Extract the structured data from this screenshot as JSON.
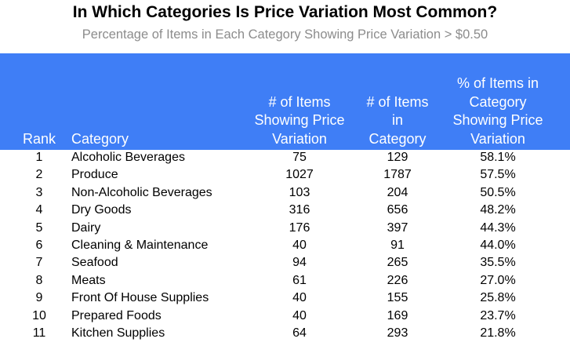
{
  "header": {
    "title": "In Which Categories Is Price Variation Most Common?",
    "subtitle": "Percentage of Items in Each Category Showing Price Variation > $0.50"
  },
  "table": {
    "columns": [
      [
        "Rank"
      ],
      [
        "Category"
      ],
      [
        "# of Items",
        "Showing Price",
        "Variation"
      ],
      [
        "# of Items",
        "in",
        "Category"
      ],
      [
        "% of Items in",
        "Category",
        "Showing Price",
        "Variation"
      ]
    ],
    "rows": [
      [
        "1",
        "Alcoholic Beverages",
        "75",
        "129",
        "58.1%"
      ],
      [
        "2",
        "Produce",
        "1027",
        "1787",
        "57.5%"
      ],
      [
        "3",
        "Non-Alcoholic Beverages",
        "103",
        "204",
        "50.5%"
      ],
      [
        "4",
        "Dry Goods",
        "316",
        "656",
        "48.2%"
      ],
      [
        "5",
        "Dairy",
        "176",
        "397",
        "44.3%"
      ],
      [
        "6",
        "Cleaning & Maintenance",
        "40",
        "91",
        "44.0%"
      ],
      [
        "7",
        "Seafood",
        "94",
        "265",
        "35.5%"
      ],
      [
        "8",
        "Meats",
        "61",
        "226",
        "27.0%"
      ],
      [
        "9",
        "Front Of House Supplies",
        "40",
        "155",
        "25.8%"
      ],
      [
        "10",
        "Prepared Foods",
        "40",
        "169",
        "23.7%"
      ],
      [
        "11",
        "Kitchen Supplies",
        "64",
        "293",
        "21.8%"
      ]
    ]
  }
}
